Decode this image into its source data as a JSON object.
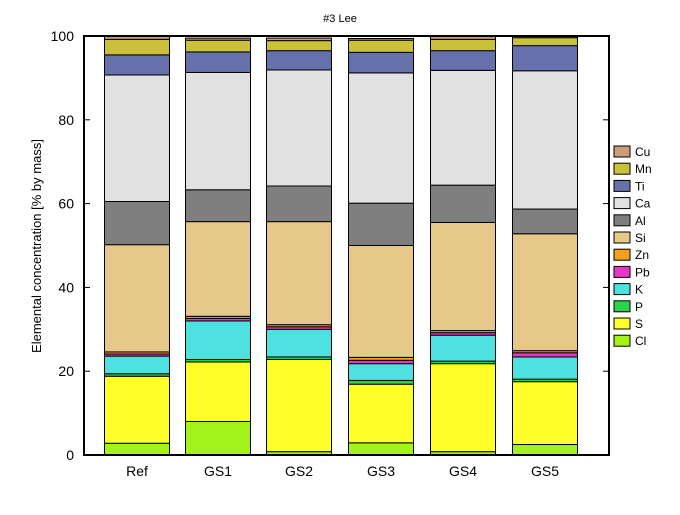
{
  "chart_data": {
    "type": "bar",
    "stacked": true,
    "title": "#3 Lee",
    "xlabel": "",
    "ylabel": "Elemental concentration [% by mass]",
    "ylim": [
      0,
      100
    ],
    "yticks": [
      0,
      20,
      40,
      60,
      80,
      100
    ],
    "grid": false,
    "legend_position": "right",
    "categories": [
      "Ref",
      "GS1",
      "GS2",
      "GS3",
      "GS4",
      "GS5"
    ],
    "series": [
      {
        "name": "Cl",
        "color": "#a4f21b",
        "values": [
          2.8,
          8.0,
          0.8,
          2.9,
          0.8,
          2.5
        ]
      },
      {
        "name": "S",
        "color": "#ffff2a",
        "values": [
          16.0,
          14.2,
          22.0,
          14.0,
          21.0,
          15.0
        ]
      },
      {
        "name": "P",
        "color": "#2ad44a",
        "values": [
          0.6,
          0.6,
          0.6,
          0.9,
          0.6,
          0.6
        ]
      },
      {
        "name": "K",
        "color": "#4de2e0",
        "values": [
          4.2,
          9.2,
          6.6,
          4.0,
          6.2,
          5.3
        ]
      },
      {
        "name": "Pb",
        "color": "#e836c8",
        "values": [
          0.5,
          0.6,
          0.6,
          0.8,
          0.6,
          1.0
        ]
      },
      {
        "name": "Zn",
        "color": "#f5a01a",
        "values": [
          0.5,
          0.5,
          0.5,
          0.7,
          0.5,
          0.5
        ]
      },
      {
        "name": "Si",
        "color": "#e6c88a",
        "values": [
          25.6,
          22.6,
          24.6,
          26.7,
          25.8,
          27.9
        ]
      },
      {
        "name": "Al",
        "color": "#7f7f7f",
        "values": [
          10.3,
          7.6,
          8.5,
          10.1,
          8.9,
          5.9
        ]
      },
      {
        "name": "Ca",
        "color": "#e1e1e1",
        "values": [
          30.2,
          28.0,
          27.7,
          31.1,
          27.4,
          33.0
        ]
      },
      {
        "name": "Ti",
        "color": "#6670aa",
        "values": [
          4.8,
          4.9,
          4.6,
          4.9,
          4.7,
          6.0
        ]
      },
      {
        "name": "Mn",
        "color": "#c9c13a",
        "values": [
          3.7,
          2.8,
          2.4,
          2.9,
          2.7,
          1.9
        ]
      },
      {
        "name": "Cu",
        "color": "#cc9e78",
        "values": [
          0.8,
          0.5,
          0.6,
          0.4,
          0.7,
          0.4
        ]
      }
    ]
  }
}
